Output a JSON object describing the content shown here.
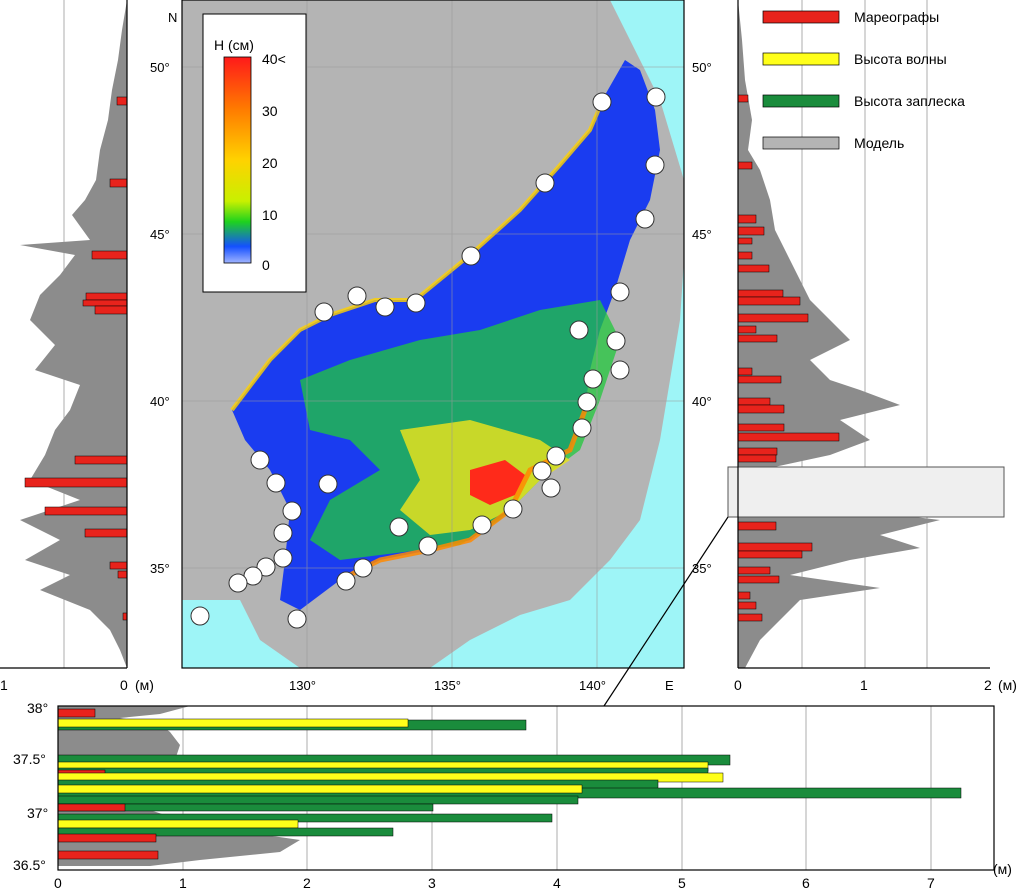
{
  "colors": {
    "sea_model": "#9ef5f7",
    "land": "#b4b4b4",
    "model_fill": "#8c8c8c",
    "tide_gauge": "#e8231c",
    "wave_height": "#ffff1a",
    "runup": "#1a8c3c",
    "grid": "#9a9a9a"
  },
  "map": {
    "lat_labels": [
      "50°",
      "45°",
      "40°",
      "35°"
    ],
    "lon_labels": [
      "130°",
      "135°",
      "140°"
    ],
    "north_label": "N",
    "east_label": "E"
  },
  "colorbar": {
    "title": "H (см)",
    "tick_labels": [
      "40<",
      "30",
      "20",
      "10",
      "0"
    ],
    "stops": [
      "#ff1a1a",
      "#ff7a00",
      "#ffd200",
      "#c8f000",
      "#1ed21e",
      "#1450ff",
      "#a0b4ff"
    ]
  },
  "left_panel": {
    "x_ticks": [
      "1",
      "0"
    ],
    "unit": "(м)"
  },
  "right_panel": {
    "x_ticks": [
      "0",
      "1",
      "2"
    ],
    "unit": "(м)"
  },
  "bottom_panel": {
    "y_labels": [
      "38°",
      "37.5°",
      "37°",
      "36.5°"
    ],
    "x_ticks": [
      "0",
      "1",
      "2",
      "3",
      "4",
      "5",
      "6",
      "7"
    ],
    "unit": "(м)"
  },
  "legend": {
    "items": [
      {
        "label": "Мареографы",
        "color": "#e8231c"
      },
      {
        "label": "Высота волны",
        "color": "#ffff1a"
      },
      {
        "label": "Высота заплеска",
        "color": "#1a8c3c"
      },
      {
        "label": "Модель",
        "color": "#b4b4b4"
      }
    ]
  },
  "chart_data": [
    {
      "type": "bar",
      "orientation": "horizontal",
      "panel": "left",
      "xlabel": "(м)",
      "xlim": [
        1,
        0
      ],
      "series": [
        {
          "name": "Мареографы",
          "values_by_lat": [
            [
              49.0,
              0.08
            ],
            [
              47.5,
              0.12
            ],
            [
              44.5,
              0.3
            ],
            [
              43.0,
              0.35
            ],
            [
              42.7,
              0.4
            ],
            [
              42.5,
              0.38
            ],
            [
              38.2,
              0.45
            ],
            [
              37.4,
              0.85
            ],
            [
              36.5,
              0.7
            ],
            [
              36.0,
              0.35
            ],
            [
              35.0,
              0.08
            ],
            [
              33.7,
              0.03
            ]
          ]
        }
      ]
    },
    {
      "type": "bar",
      "orientation": "horizontal",
      "panel": "right",
      "xlabel": "(м)",
      "xlim": [
        0,
        2
      ],
      "series": [
        {
          "name": "Мареографы",
          "values_by_lat": [
            [
              49.0,
              0.07
            ],
            [
              47.0,
              0.1
            ],
            [
              45.0,
              0.2
            ],
            [
              44.5,
              0.22
            ],
            [
              43.0,
              0.4
            ],
            [
              42.5,
              0.55
            ],
            [
              42.0,
              0.3
            ],
            [
              41.0,
              0.35
            ],
            [
              40.0,
              0.25
            ],
            [
              39.2,
              0.8
            ],
            [
              38.7,
              0.3
            ],
            [
              36.0,
              0.3
            ],
            [
              35.5,
              0.6
            ],
            [
              34.5,
              0.3
            ],
            [
              33.8,
              0.2
            ]
          ]
        }
      ]
    },
    {
      "type": "bar",
      "orientation": "horizontal",
      "panel": "bottom",
      "xlabel": "(м)",
      "xlim": [
        0,
        7.5
      ],
      "ylim": [
        36.5,
        38.0
      ],
      "series": [
        {
          "name": "Высота заплеска",
          "max_value": 7.2
        },
        {
          "name": "Высота волны",
          "max_value": 5.4
        },
        {
          "name": "Мареографы",
          "max_value": 1.2
        }
      ]
    }
  ]
}
